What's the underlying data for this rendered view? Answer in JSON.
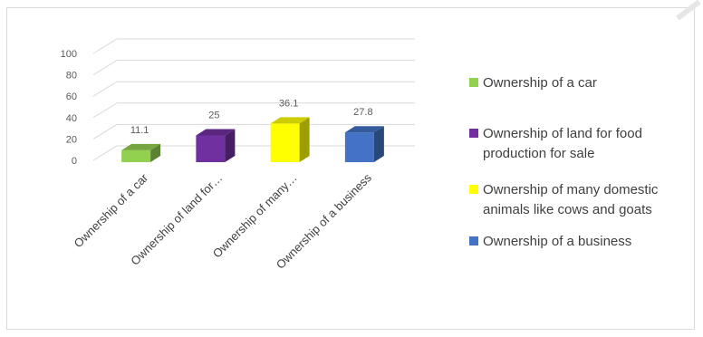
{
  "chart_data": {
    "type": "bar",
    "style": "3d-column",
    "categories": [
      "Ownership of a car",
      "Ownership of land for food production for sale",
      "Ownership of many domestic animals like cows and goats",
      "Ownership of a business"
    ],
    "category_tick_labels": [
      "Ownership of a car",
      "Ownership of land for…",
      "Ownership of many…",
      "Ownership of a business"
    ],
    "values": [
      11.1,
      25,
      36.1,
      27.8
    ],
    "data_labels": [
      "11.1",
      "25",
      "36.1",
      "27.8"
    ],
    "y_ticks": [
      "0",
      "20",
      "40",
      "60",
      "80",
      "100"
    ],
    "ylim": [
      0,
      100
    ],
    "grid": true,
    "legend_position": "right",
    "legend": [
      {
        "lines": [
          "Ownership of a car"
        ],
        "color": "#92d050"
      },
      {
        "lines": [
          "Ownership of land for food",
          "production for sale"
        ],
        "color": "#7030a0"
      },
      {
        "lines": [
          "Ownership of many domestic",
          "animals like cows and goats"
        ],
        "color": "#ffff00"
      },
      {
        "lines": [
          "Ownership of a business"
        ],
        "color": "#4472c4"
      }
    ],
    "colors": [
      "#92d050",
      "#7030a0",
      "#ffff00",
      "#4472c4"
    ],
    "title": "",
    "xlabel": "",
    "ylabel": ""
  }
}
